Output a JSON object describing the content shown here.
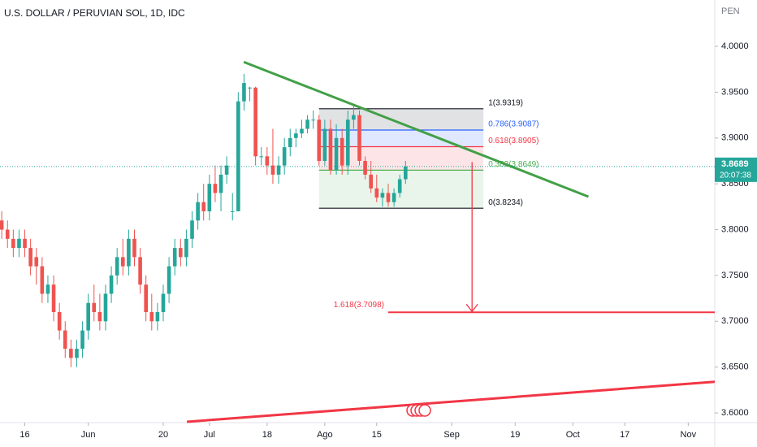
{
  "chart_data": {
    "type": "candlestick",
    "title": "U.S. DOLLAR / PERUVIAN SOL, 1D, IDC",
    "currency": "PEN",
    "up_color": "#26a69a",
    "down_color": "#ef5350",
    "ohlc": [
      [
        3.81,
        3.82,
        3.79,
        3.8
      ],
      [
        3.8,
        3.81,
        3.78,
        3.79
      ],
      [
        3.79,
        3.8,
        3.77,
        3.78
      ],
      [
        3.78,
        3.8,
        3.77,
        3.79
      ],
      [
        3.79,
        3.8,
        3.77,
        3.78
      ],
      [
        3.78,
        3.79,
        3.75,
        3.76
      ],
      [
        3.77,
        3.78,
        3.74,
        3.76
      ],
      [
        3.76,
        3.77,
        3.72,
        3.73
      ],
      [
        3.73,
        3.75,
        3.72,
        3.74
      ],
      [
        3.74,
        3.75,
        3.7,
        3.71
      ],
      [
        3.71,
        3.72,
        3.68,
        3.69
      ],
      [
        3.69,
        3.7,
        3.66,
        3.67
      ],
      [
        3.67,
        3.68,
        3.65,
        3.66
      ],
      [
        3.66,
        3.68,
        3.65,
        3.67
      ],
      [
        3.67,
        3.7,
        3.66,
        3.69
      ],
      [
        3.69,
        3.73,
        3.68,
        3.72
      ],
      [
        3.72,
        3.74,
        3.7,
        3.71
      ],
      [
        3.71,
        3.73,
        3.69,
        3.7
      ],
      [
        3.7,
        3.74,
        3.69,
        3.73
      ],
      [
        3.73,
        3.76,
        3.72,
        3.75
      ],
      [
        3.75,
        3.78,
        3.74,
        3.77
      ],
      [
        3.77,
        3.79,
        3.75,
        3.76
      ],
      [
        3.76,
        3.8,
        3.75,
        3.79
      ],
      [
        3.79,
        3.8,
        3.76,
        3.77
      ],
      [
        3.77,
        3.78,
        3.73,
        3.74
      ],
      [
        3.74,
        3.75,
        3.7,
        3.71
      ],
      [
        3.71,
        3.73,
        3.69,
        3.7
      ],
      [
        3.7,
        3.72,
        3.69,
        3.71
      ],
      [
        3.71,
        3.74,
        3.7,
        3.73
      ],
      [
        3.73,
        3.77,
        3.72,
        3.76
      ],
      [
        3.76,
        3.79,
        3.75,
        3.78
      ],
      [
        3.78,
        3.79,
        3.76,
        3.77
      ],
      [
        3.77,
        3.8,
        3.76,
        3.79
      ],
      [
        3.79,
        3.82,
        3.78,
        3.81
      ],
      [
        3.81,
        3.84,
        3.8,
        3.83
      ],
      [
        3.83,
        3.85,
        3.81,
        3.82
      ],
      [
        3.82,
        3.86,
        3.81,
        3.85
      ],
      [
        3.85,
        3.87,
        3.83,
        3.84
      ],
      [
        3.84,
        3.87,
        3.82,
        3.86
      ],
      [
        3.86,
        3.88,
        3.85,
        3.87
      ],
      [
        3.82,
        3.84,
        3.81,
        3.82
      ],
      [
        3.82,
        3.95,
        3.82,
        3.94
      ],
      [
        3.94,
        3.97,
        3.93,
        3.96
      ],
      [
        3.955,
        3.956,
        3.94,
        3.955
      ],
      [
        3.955,
        3.956,
        3.87,
        3.88
      ],
      [
        3.88,
        3.89,
        3.87,
        3.88
      ],
      [
        3.88,
        3.89,
        3.86,
        3.87
      ],
      [
        3.87,
        3.91,
        3.85,
        3.86
      ],
      [
        3.86,
        3.88,
        3.85,
        3.87
      ],
      [
        3.87,
        3.9,
        3.86,
        3.89
      ],
      [
        3.89,
        3.91,
        3.88,
        3.9
      ],
      [
        3.9,
        3.91,
        3.89,
        3.905
      ],
      [
        3.905,
        3.92,
        3.9,
        3.91
      ],
      [
        3.91,
        3.925,
        3.905,
        3.92
      ],
      [
        3.92,
        3.93,
        3.91,
        3.92
      ],
      [
        3.92,
        3.925,
        3.87,
        3.875
      ],
      [
        3.875,
        3.92,
        3.87,
        3.91
      ],
      [
        3.91,
        3.92,
        3.86,
        3.865
      ],
      [
        3.865,
        3.915,
        3.86,
        3.9
      ],
      [
        3.9,
        3.91,
        3.86,
        3.87
      ],
      [
        3.87,
        3.93,
        3.86,
        3.92
      ],
      [
        3.92,
        3.935,
        3.91,
        3.925
      ],
      [
        3.925,
        3.93,
        3.87,
        3.875
      ],
      [
        3.875,
        3.88,
        3.855,
        3.86
      ],
      [
        3.86,
        3.875,
        3.84,
        3.845
      ],
      [
        3.845,
        3.86,
        3.83,
        3.835
      ],
      [
        3.835,
        3.845,
        3.825,
        3.84
      ],
      [
        3.84,
        3.85,
        3.825,
        3.83
      ],
      [
        3.83,
        3.845,
        3.825,
        3.84
      ],
      [
        3.84,
        3.86,
        3.835,
        3.855
      ],
      [
        3.855,
        3.875,
        3.85,
        3.8689
      ]
    ],
    "xlim": [
      -0.3,
      123.6
    ],
    "ylim": [
      3.5894,
      4.0506
    ],
    "xticks": [
      {
        "value": 4,
        "label": "16"
      },
      {
        "value": 15,
        "label": "Jun"
      },
      {
        "value": 28,
        "label": "20"
      },
      {
        "value": 36,
        "label": "Jul"
      },
      {
        "value": 46,
        "label": "18"
      },
      {
        "value": 56,
        "label": "Ago"
      },
      {
        "value": 65,
        "label": "15"
      },
      {
        "value": 78,
        "label": "Sep"
      },
      {
        "value": 89,
        "label": "19"
      },
      {
        "value": 99,
        "label": "Oct"
      },
      {
        "value": 108,
        "label": "17"
      },
      {
        "value": 119,
        "label": "Nov"
      }
    ],
    "yticks": [
      {
        "value": 3.6,
        "label": "3.6000"
      },
      {
        "value": 3.65,
        "label": "3.6500"
      },
      {
        "value": 3.7,
        "label": "3.7000"
      },
      {
        "value": 3.75,
        "label": "3.7500"
      },
      {
        "value": 3.8,
        "label": "3.8000"
      },
      {
        "value": 3.85,
        "label": "3.8500"
      },
      {
        "value": 3.9,
        "label": "3.9000"
      },
      {
        "value": 3.95,
        "label": "3.9500"
      },
      {
        "value": 4,
        "label": "4.0000"
      }
    ],
    "last_price": 3.8689,
    "countdown": "20:07:38",
    "fib": {
      "x": [
        55,
        83.5
      ],
      "levels": [
        {
          "value": 3.9319,
          "label": "1(3.9319)",
          "color": "#131722",
          "fill": "rgba(120,123,134,0.22)"
        },
        {
          "value": 3.9087,
          "label": "0.786(3.9087)",
          "color": "#2962ff",
          "fill": "rgba(41,98,255,0.15)"
        },
        {
          "value": 3.8905,
          "label": "0.618(3.8905)",
          "color": "#f23645",
          "fill": "rgba(242,54,69,0.13)"
        },
        {
          "value": 3.8649,
          "label": "0.382(3.8649)",
          "color": "#4caf50",
          "fill": "rgba(76,175,80,0.12)"
        },
        {
          "value": 3.8234,
          "label": "0(3.8234)",
          "color": "#131722"
        }
      ],
      "extension": {
        "value": 3.7098,
        "label": "1.618(3.7098)",
        "color": "#f23645",
        "x": [
          67,
          123.6
        ]
      }
    },
    "trendlines": [
      {
        "color": "#43a047",
        "points": [
          [
            41.95,
            3.983
          ],
          [
            101.7,
            3.836
          ]
        ]
      },
      {
        "color": "#f23645",
        "points": [
          [
            32.1,
            3.5903
          ],
          [
            123.6,
            3.634
          ]
        ]
      }
    ]
  }
}
